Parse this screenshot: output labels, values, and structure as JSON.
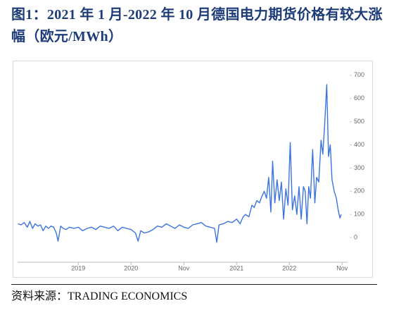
{
  "chart_data": {
    "type": "line",
    "title": "图1：2021 年 1 月-2022 年 10 月德国电力期货价格有较大涨幅（欧元/MWh）",
    "source": "资料来源：TRADING ECONOMICS",
    "xlim": [
      -1.8,
      72.6
    ],
    "xticks": [
      {
        "value": 12,
        "label": "2019"
      },
      {
        "value": 24,
        "label": "2020"
      },
      {
        "value": 36,
        "label": "Nov"
      },
      {
        "value": 48,
        "label": "2021"
      },
      {
        "value": 60,
        "label": "2022"
      },
      {
        "value": 72,
        "label": "Nov"
      }
    ],
    "ylim": [
      -106,
      736
    ],
    "yticks": [
      0,
      100,
      200,
      300,
      400,
      500,
      600,
      700
    ],
    "series": [
      {
        "color": "#3b73e0",
        "x": [
          -1.7,
          -1,
          -0.3,
          0.4,
          1,
          1.6,
          2.2,
          2.8,
          3.4,
          4,
          4.6,
          5.2,
          5.8,
          6.4,
          7,
          7.4,
          8,
          8.6,
          9.2,
          10,
          11,
          12,
          13,
          14,
          15,
          16,
          17,
          18,
          19,
          20,
          21,
          22,
          23,
          24,
          25,
          25.6,
          26.2,
          27,
          28,
          29,
          30,
          31,
          32,
          33,
          34,
          35,
          36,
          37,
          38,
          39,
          40,
          41,
          42,
          43,
          43.5,
          44,
          45,
          46,
          47,
          48,
          48.8,
          49.5,
          50,
          50.8,
          51.5,
          52,
          52.6,
          53.2,
          53.8,
          54.3,
          54.8,
          55.3,
          55.8,
          56.2,
          56.7,
          57.2,
          57.7,
          58.2,
          58.7,
          59.2,
          59.7,
          60.2,
          60.7,
          61.2,
          61.7,
          62.2,
          62.7,
          63.2,
          63.6,
          64,
          64.4,
          64.8,
          65.3,
          65.8,
          66.2,
          66.7,
          67.2,
          67.6,
          68,
          68.5,
          68.9,
          69.3,
          69.7,
          70.2,
          70.7,
          71.1,
          71.5,
          71.8
        ],
        "values": [
          60,
          55,
          65,
          45,
          70,
          40,
          60,
          50,
          55,
          30,
          50,
          40,
          50,
          45,
          20,
          -15,
          50,
          40,
          35,
          45,
          40,
          45,
          30,
          40,
          45,
          35,
          50,
          45,
          40,
          50,
          30,
          45,
          40,
          35,
          20,
          -15,
          30,
          20,
          25,
          35,
          50,
          45,
          60,
          50,
          40,
          55,
          45,
          40,
          55,
          60,
          65,
          50,
          45,
          40,
          -20,
          55,
          60,
          70,
          65,
          80,
          60,
          90,
          100,
          90,
          140,
          130,
          160,
          150,
          180,
          200,
          170,
          260,
          110,
          330,
          150,
          250,
          160,
          240,
          80,
          210,
          140,
          410,
          120,
          180,
          100,
          220,
          80,
          220,
          200,
          60,
          220,
          170,
          380,
          150,
          260,
          240,
          420,
          360,
          480,
          660,
          350,
          400,
          250,
          200,
          170,
          120,
          85,
          100
        ]
      }
    ]
  }
}
